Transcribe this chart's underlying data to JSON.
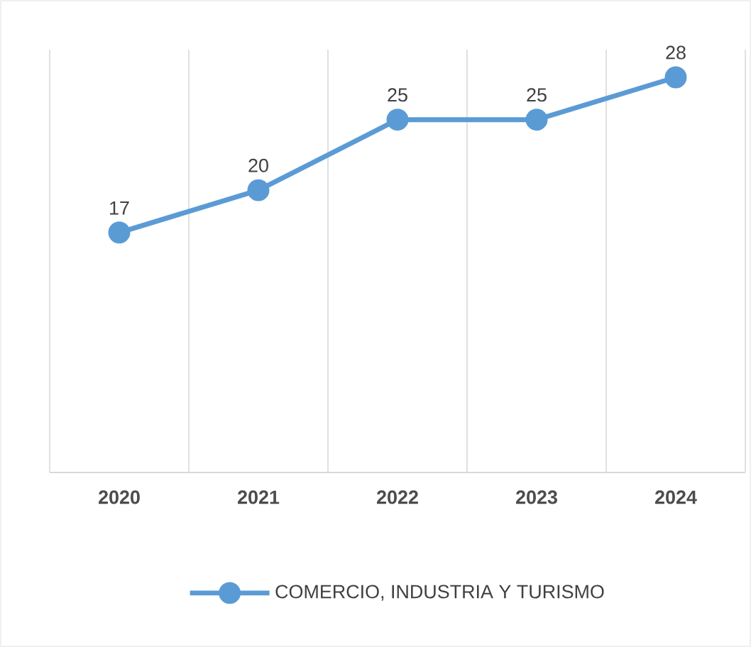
{
  "chart_data": {
    "type": "line",
    "categories": [
      "2020",
      "2021",
      "2022",
      "2023",
      "2024"
    ],
    "series": [
      {
        "name": "COMERCIO, INDUSTRIA Y TURISMO",
        "color": "#5b9bd5",
        "values": [
          17,
          20,
          25,
          25,
          28
        ]
      }
    ],
    "data_labels": true,
    "grid": "x",
    "legend": "bottom",
    "marker": "circle"
  }
}
